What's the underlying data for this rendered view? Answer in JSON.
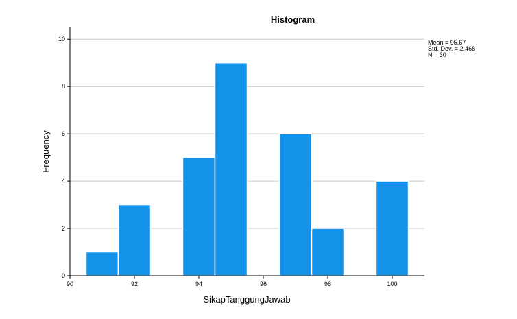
{
  "chart_data": {
    "type": "bar",
    "title": "Histogram",
    "xlabel": "SikapTanggungJawab",
    "ylabel": "Frequency",
    "bin_width": 1,
    "bins": [
      {
        "x": 91,
        "value": 1
      },
      {
        "x": 92,
        "value": 3
      },
      {
        "x": 93,
        "value": 0
      },
      {
        "x": 94,
        "value": 5
      },
      {
        "x": 95,
        "value": 9
      },
      {
        "x": 96,
        "value": 0
      },
      {
        "x": 97,
        "value": 6
      },
      {
        "x": 98,
        "value": 2
      },
      {
        "x": 99,
        "value": 0
      },
      {
        "x": 100,
        "value": 4
      }
    ],
    "xlim": [
      90,
      101
    ],
    "ylim": [
      0,
      10.5
    ],
    "xticks": [
      "90",
      "92",
      "94",
      "96",
      "98",
      "100"
    ],
    "yticks": [
      "0",
      "2",
      "4",
      "6",
      "8",
      "10"
    ],
    "grid": "horizontal",
    "bar_color": "#1491E8",
    "stats": {
      "mean": "Mean = 95.67",
      "std_dev": "Std. Dev. = 2.468",
      "n": "N = 30"
    }
  }
}
